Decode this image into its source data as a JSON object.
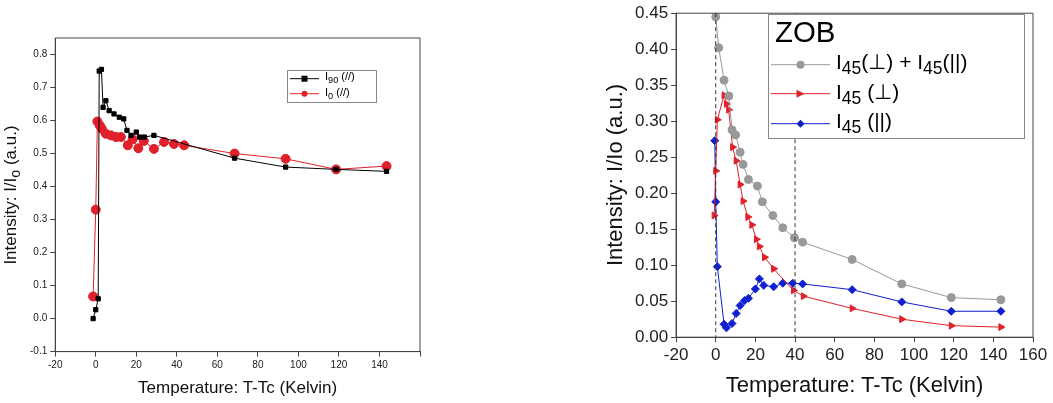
{
  "chart_data": [
    {
      "type": "line",
      "xlabel": "Temperature: T-Tc (Kelvin)",
      "ylabel": "Intensity: I/I$_{o}$ (a.u.)",
      "xlim": [
        -20,
        160
      ],
      "ylim": [
        -0.1,
        0.85
      ],
      "xticks": [
        -20,
        0,
        20,
        40,
        60,
        80,
        100,
        120,
        140,
        {
          "value": 160,
          "label": null
        }
      ],
      "yticks": [
        {
          "value": -0.1,
          "label": "-0.1"
        },
        {
          "value": 0,
          "label": "0.0"
        },
        {
          "value": 0.1,
          "label": "0.1"
        },
        {
          "value": 0.2,
          "label": "0.2"
        },
        {
          "value": 0.3,
          "label": "0.3"
        },
        {
          "value": 0.4,
          "label": "0.4"
        },
        {
          "value": 0.5,
          "label": "0.5"
        },
        {
          "value": 0.6,
          "label": "0.6"
        },
        {
          "value": 0.7,
          "label": "0.7"
        },
        {
          "value": 0.8,
          "label": "0.8"
        }
      ],
      "grid": false,
      "legend": "top right",
      "series": [
        {
          "name": "I$_{90}$ (//)",
          "color": "#000000",
          "marker": "square",
          "x": [
            -1.3,
            0,
            1.2,
            1.7,
            2.8,
            3.6,
            5,
            6.6,
            9,
            11.6,
            13.8,
            15.4,
            17.4,
            20,
            21.6,
            24,
            28.7,
            68.5,
            93.7,
            118.6,
            143.5
          ],
          "values": [
            0.0,
            0.027,
            0.06,
            0.75,
            0.755,
            0.64,
            0.66,
            0.63,
            0.62,
            0.61,
            0.605,
            0.57,
            0.555,
            0.565,
            0.55,
            0.55,
            0.555,
            0.486,
            0.459,
            0.452,
            0.446
          ]
        },
        {
          "name": "I$_{0}$ (//)",
          "color": "#e0202a",
          "marker": "circle",
          "x": [
            -1.3,
            0,
            0.8,
            2,
            3,
            5,
            7.5,
            10,
            12.4,
            15.8,
            18.2,
            21,
            23.7,
            28.7,
            33.7,
            38.6,
            43.6,
            68.5,
            93.7,
            118.6,
            143.5
          ],
          "values": [
            0.067,
            0.33,
            0.597,
            0.585,
            0.575,
            0.56,
            0.555,
            0.55,
            0.55,
            0.525,
            0.543,
            0.516,
            0.538,
            0.514,
            0.535,
            0.529,
            0.525,
            0.5,
            0.484,
            0.452,
            0.462
          ]
        }
      ]
    },
    {
      "type": "line",
      "xlabel": "Temperature: T-Tc (Kelvin)",
      "ylabel": "Intensity: I/Io (a.u.)",
      "legend_title": "ZOB",
      "xlim": [
        -20,
        160
      ],
      "ylim": [
        0,
        0.45
      ],
      "xticks": [
        -20,
        0,
        20,
        40,
        60,
        80,
        100,
        120,
        140,
        160
      ],
      "yticks": [
        {
          "value": 0,
          "label": "0.00"
        },
        {
          "value": 0.05,
          "label": "0.05"
        },
        {
          "value": 0.1,
          "label": "0.10"
        },
        {
          "value": 0.15,
          "label": "0.15"
        },
        {
          "value": 0.2,
          "label": "0.20"
        },
        {
          "value": 0.25,
          "label": "0.25"
        },
        {
          "value": 0.3,
          "label": "0.30"
        },
        {
          "value": 0.35,
          "label": "0.35"
        },
        {
          "value": 0.4,
          "label": "0.40"
        },
        {
          "value": 0.45,
          "label": "0.45"
        }
      ],
      "grid": false,
      "legend": "top right",
      "ref_lines": [
        {
          "axis": "x",
          "value": 0,
          "line_style": "dashed",
          "color": "#333333"
        },
        {
          "axis": "x",
          "value": 40,
          "line_style": "dashed",
          "color": "#333333"
        }
      ],
      "series": [
        {
          "name": "I$_{45}$(⊥) + I$_{45}$(||)",
          "color": "#999999",
          "marker": "circle",
          "x": [
            0,
            1.5,
            4.2,
            6.6,
            8.2,
            10,
            12.3,
            13.8,
            16.5,
            21,
            23.5,
            28.8,
            33.8,
            39.7,
            43.8,
            68.8,
            93.8,
            118.8,
            143.8
          ],
          "values": [
            0.445,
            0.402,
            0.357,
            0.335,
            0.288,
            0.281,
            0.257,
            0.24,
            0.219,
            0.21,
            0.188,
            0.169,
            0.152,
            0.138,
            0.132,
            0.108,
            0.074,
            0.055,
            0.052
          ]
        },
        {
          "name": "I$_{45}$ (⊥)",
          "color": "#e0202a",
          "marker": "triangle",
          "x": [
            -0.8,
            0,
            0.8,
            4.2,
            5.4,
            6.5,
            8.5,
            10.3,
            12.3,
            13.8,
            16.2,
            18.2,
            20.5,
            22,
            24.6,
            29.2,
            39.2,
            44.2,
            68.8,
            93.8,
            118.8,
            143.8
          ],
          "values": [
            0.169,
            0.231,
            0.302,
            0.336,
            0.324,
            0.316,
            0.264,
            0.245,
            0.212,
            0.189,
            0.167,
            0.156,
            0.136,
            0.126,
            0.111,
            0.095,
            0.065,
            0.057,
            0.04,
            0.025,
            0.016,
            0.014
          ]
        },
        {
          "name": "I$_{45}$ (||)",
          "color": "#1020d0",
          "marker": "diamond",
          "x": [
            -0.5,
            0,
            0.8,
            4.2,
            5.4,
            8.2,
            10.3,
            12.3,
            14.6,
            16.5,
            20,
            22,
            24.2,
            29.2,
            33.8,
            38.8,
            43.8,
            68.8,
            93.8,
            118.8,
            143.8
          ],
          "values": [
            0.273,
            0.188,
            0.098,
            0.018,
            0.013,
            0.019,
            0.033,
            0.044,
            0.051,
            0.054,
            0.067,
            0.081,
            0.072,
            0.07,
            0.075,
            0.075,
            0.074,
            0.066,
            0.049,
            0.036,
            0.036
          ]
        }
      ]
    }
  ]
}
